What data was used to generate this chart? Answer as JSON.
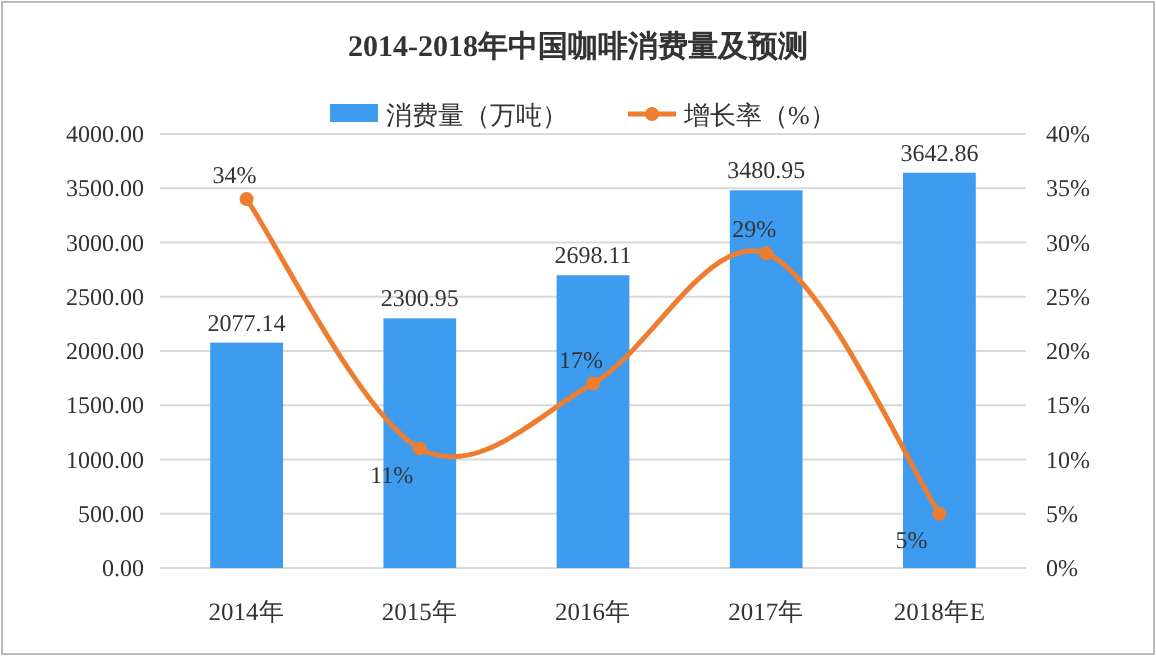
{
  "chart_data": {
    "type": "bar",
    "title": "2014-2018年中国咖啡消费量及预测",
    "categories": [
      "2014年",
      "2015年",
      "2016年",
      "2017年",
      "2018年E"
    ],
    "series": [
      {
        "name": "消费量（万吨）",
        "color": "#3d9cf0",
        "values": [
          2077.14,
          2300.95,
          2698.11,
          3480.95,
          3642.86
        ],
        "value_labels": [
          "2077.14",
          "2300.95",
          "2698.11",
          "3480.95",
          "3642.86"
        ]
      },
      {
        "name": "增长率（%）",
        "type": "line",
        "axis": "y2",
        "color": "#ed7d31",
        "values": [
          34,
          11,
          17,
          29,
          5
        ],
        "value_labels": [
          "34%",
          "11%",
          "17%",
          "29%",
          "5%"
        ]
      }
    ],
    "ylim": [
      0,
      4000
    ],
    "yticks": [
      {
        "value": 0,
        "label": "0.00"
      },
      {
        "value": 500,
        "label": "500.00"
      },
      {
        "value": 1000,
        "label": "1000.00"
      },
      {
        "value": 1500,
        "label": "1500.00"
      },
      {
        "value": 2000,
        "label": "2000.00"
      },
      {
        "value": 2500,
        "label": "2500.00"
      },
      {
        "value": 3000,
        "label": "3000.00"
      },
      {
        "value": 3500,
        "label": "3500.00"
      },
      {
        "value": 4000,
        "label": "4000.00"
      }
    ],
    "y2lim": [
      0,
      40
    ],
    "y2ticks": [
      {
        "value": 0,
        "label": "0%"
      },
      {
        "value": 5,
        "label": "5%"
      },
      {
        "value": 10,
        "label": "10%"
      },
      {
        "value": 15,
        "label": "15%"
      },
      {
        "value": 20,
        "label": "20%"
      },
      {
        "value": 25,
        "label": "25%"
      },
      {
        "value": 30,
        "label": "30%"
      },
      {
        "value": 35,
        "label": "35%"
      },
      {
        "value": 40,
        "label": "40%"
      }
    ],
    "grid": "y",
    "legend": "top",
    "marker": "circle"
  }
}
